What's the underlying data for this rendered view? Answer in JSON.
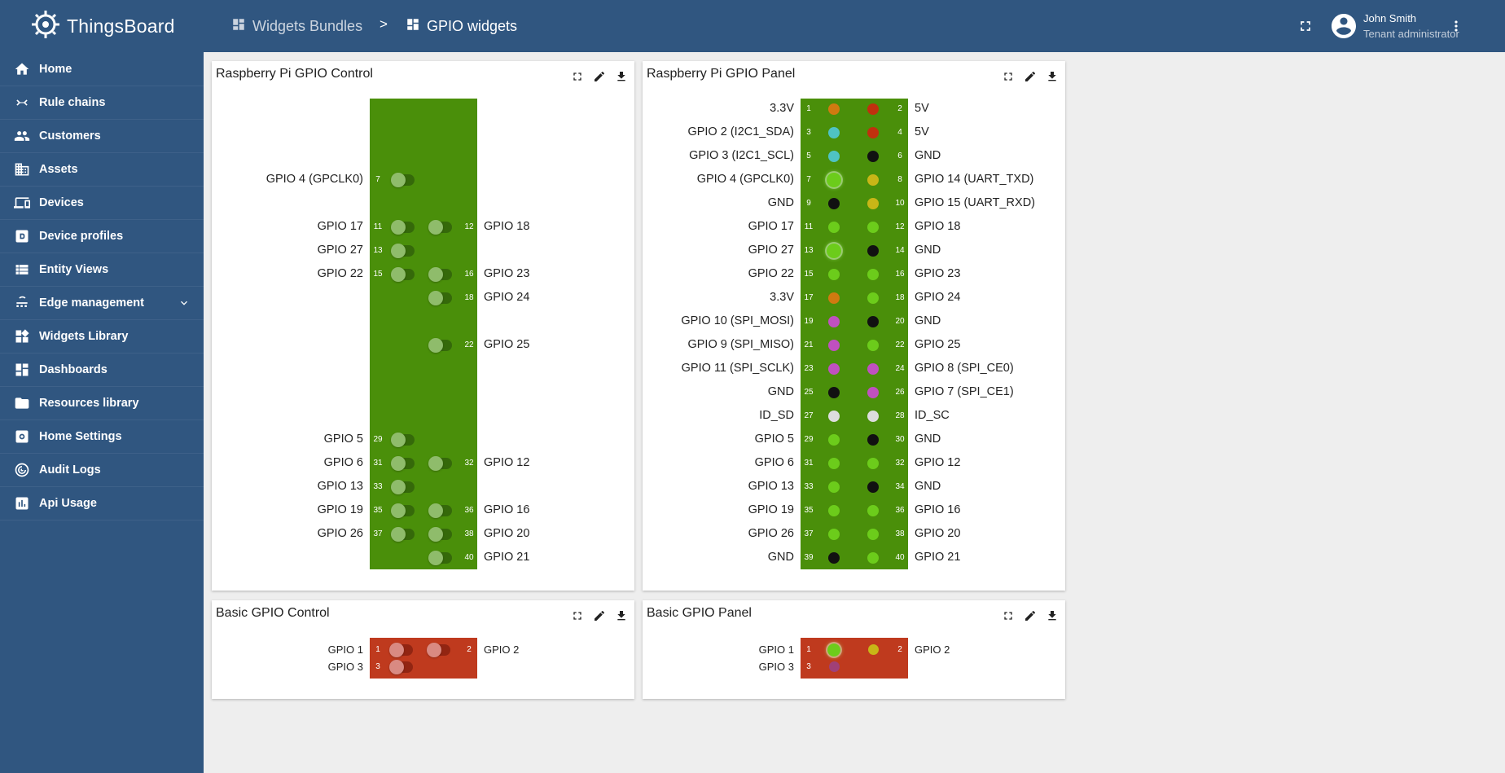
{
  "app": {
    "name": "ThingsBoard",
    "brand_color": "#305680"
  },
  "nav": [
    {
      "label": "Home",
      "icon": "home-icon"
    },
    {
      "label": "Rule chains",
      "icon": "rule-chains-icon"
    },
    {
      "label": "Customers",
      "icon": "customers-icon"
    },
    {
      "label": "Assets",
      "icon": "assets-icon"
    },
    {
      "label": "Devices",
      "icon": "devices-icon"
    },
    {
      "label": "Device profiles",
      "icon": "device-profiles-icon"
    },
    {
      "label": "Entity Views",
      "icon": "entity-views-icon"
    },
    {
      "label": "Edge management",
      "icon": "edge-icon",
      "expandable": true
    },
    {
      "label": "Widgets Library",
      "icon": "widgets-icon"
    },
    {
      "label": "Dashboards",
      "icon": "dashboards-icon"
    },
    {
      "label": "Resources library",
      "icon": "folder-icon"
    },
    {
      "label": "Home Settings",
      "icon": "settings-icon"
    },
    {
      "label": "Audit Logs",
      "icon": "audit-logs-icon"
    },
    {
      "label": "Api Usage",
      "icon": "api-usage-icon"
    }
  ],
  "breadcrumb": {
    "parent": "Widgets Bundles",
    "separator": ">",
    "current": "GPIO widgets"
  },
  "user": {
    "name": "John Smith",
    "role": "Tenant administrator"
  },
  "colors": {
    "green_board": "#4a8f0a",
    "red_board": "#bf3a1e",
    "pin_orange": "#d07a10",
    "pin_red": "#c0300e",
    "pin_cyan": "#4fc3c3",
    "pin_black": "#111111",
    "pin_yellow": "#c8b617",
    "pin_green": "#6ccc1b",
    "pin_purple": "#c050c0",
    "pin_white": "#dddddd",
    "pin_dim_purple": "#a04078"
  },
  "widgets": {
    "gpio_control": {
      "title": "Raspberry Pi GPIO Control",
      "pins": [
        {
          "pin": 7,
          "label": "GPIO 4 (GPCLK0)"
        },
        {
          "pin": 11,
          "label": "GPIO 17"
        },
        {
          "pin": 12,
          "label": "GPIO 18"
        },
        {
          "pin": 13,
          "label": "GPIO 27"
        },
        {
          "pin": 15,
          "label": "GPIO 22"
        },
        {
          "pin": 16,
          "label": "GPIO 23"
        },
        {
          "pin": 18,
          "label": "GPIO 24"
        },
        {
          "pin": 22,
          "label": "GPIO 25"
        },
        {
          "pin": 29,
          "label": "GPIO 5"
        },
        {
          "pin": 31,
          "label": "GPIO 6"
        },
        {
          "pin": 32,
          "label": "GPIO 12"
        },
        {
          "pin": 33,
          "label": "GPIO 13"
        },
        {
          "pin": 35,
          "label": "GPIO 19"
        },
        {
          "pin": 36,
          "label": "GPIO 16"
        },
        {
          "pin": 37,
          "label": "GPIO 26"
        },
        {
          "pin": 38,
          "label": "GPIO 20"
        },
        {
          "pin": 40,
          "label": "GPIO 21"
        }
      ]
    },
    "gpio_panel": {
      "title": "Raspberry Pi GPIO Panel",
      "pins": [
        {
          "pin": 1,
          "label": "3.3V",
          "color": "pin_orange"
        },
        {
          "pin": 2,
          "label": "5V",
          "color": "pin_red"
        },
        {
          "pin": 3,
          "label": "GPIO 2 (I2C1_SDA)",
          "color": "pin_cyan"
        },
        {
          "pin": 4,
          "label": "5V",
          "color": "pin_red"
        },
        {
          "pin": 5,
          "label": "GPIO 3 (I2C1_SCL)",
          "color": "pin_cyan"
        },
        {
          "pin": 6,
          "label": "GND",
          "color": "pin_black"
        },
        {
          "pin": 7,
          "label": "GPIO 4 (GPCLK0)",
          "color": "pin_green",
          "on": true
        },
        {
          "pin": 8,
          "label": "GPIO 14 (UART_TXD)",
          "color": "pin_yellow"
        },
        {
          "pin": 9,
          "label": "GND",
          "color": "pin_black"
        },
        {
          "pin": 10,
          "label": "GPIO 15 (UART_RXD)",
          "color": "pin_yellow"
        },
        {
          "pin": 11,
          "label": "GPIO 17",
          "color": "pin_green"
        },
        {
          "pin": 12,
          "label": "GPIO 18",
          "color": "pin_green"
        },
        {
          "pin": 13,
          "label": "GPIO 27",
          "color": "pin_green",
          "on": true
        },
        {
          "pin": 14,
          "label": "GND",
          "color": "pin_black"
        },
        {
          "pin": 15,
          "label": "GPIO 22",
          "color": "pin_green"
        },
        {
          "pin": 16,
          "label": "GPIO 23",
          "color": "pin_green"
        },
        {
          "pin": 17,
          "label": "3.3V",
          "color": "pin_orange"
        },
        {
          "pin": 18,
          "label": "GPIO 24",
          "color": "pin_green"
        },
        {
          "pin": 19,
          "label": "GPIO 10 (SPI_MOSI)",
          "color": "pin_purple"
        },
        {
          "pin": 20,
          "label": "GND",
          "color": "pin_black"
        },
        {
          "pin": 21,
          "label": "GPIO 9 (SPI_MISO)",
          "color": "pin_purple"
        },
        {
          "pin": 22,
          "label": "GPIO 25",
          "color": "pin_green"
        },
        {
          "pin": 23,
          "label": "GPIO 11 (SPI_SCLK)",
          "color": "pin_purple"
        },
        {
          "pin": 24,
          "label": "GPIO 8 (SPI_CE0)",
          "color": "pin_purple"
        },
        {
          "pin": 25,
          "label": "GND",
          "color": "pin_black"
        },
        {
          "pin": 26,
          "label": "GPIO 7 (SPI_CE1)",
          "color": "pin_purple"
        },
        {
          "pin": 27,
          "label": "ID_SD",
          "color": "pin_white"
        },
        {
          "pin": 28,
          "label": "ID_SC",
          "color": "pin_white"
        },
        {
          "pin": 29,
          "label": "GPIO 5",
          "color": "pin_green"
        },
        {
          "pin": 30,
          "label": "GND",
          "color": "pin_black"
        },
        {
          "pin": 31,
          "label": "GPIO 6",
          "color": "pin_green"
        },
        {
          "pin": 32,
          "label": "GPIO 12",
          "color": "pin_green"
        },
        {
          "pin": 33,
          "label": "GPIO 13",
          "color": "pin_green"
        },
        {
          "pin": 34,
          "label": "GND",
          "color": "pin_black"
        },
        {
          "pin": 35,
          "label": "GPIO 19",
          "color": "pin_green"
        },
        {
          "pin": 36,
          "label": "GPIO 16",
          "color": "pin_green"
        },
        {
          "pin": 37,
          "label": "GPIO 26",
          "color": "pin_green"
        },
        {
          "pin": 38,
          "label": "GPIO 20",
          "color": "pin_green"
        },
        {
          "pin": 39,
          "label": "GND",
          "color": "pin_black"
        },
        {
          "pin": 40,
          "label": "GPIO 21",
          "color": "pin_green"
        }
      ]
    },
    "basic_control": {
      "title": "Basic GPIO Control",
      "pins": [
        {
          "pin": 1,
          "label": "GPIO 1"
        },
        {
          "pin": 2,
          "label": "GPIO 2"
        },
        {
          "pin": 3,
          "label": "GPIO 3"
        }
      ]
    },
    "basic_panel": {
      "title": "Basic GPIO Panel",
      "pins": [
        {
          "pin": 1,
          "label": "GPIO 1",
          "color": "pin_green",
          "on": true
        },
        {
          "pin": 2,
          "label": "GPIO 2",
          "color": "pin_yellow"
        },
        {
          "pin": 3,
          "label": "GPIO 3",
          "color": "pin_dim_purple"
        }
      ]
    }
  }
}
